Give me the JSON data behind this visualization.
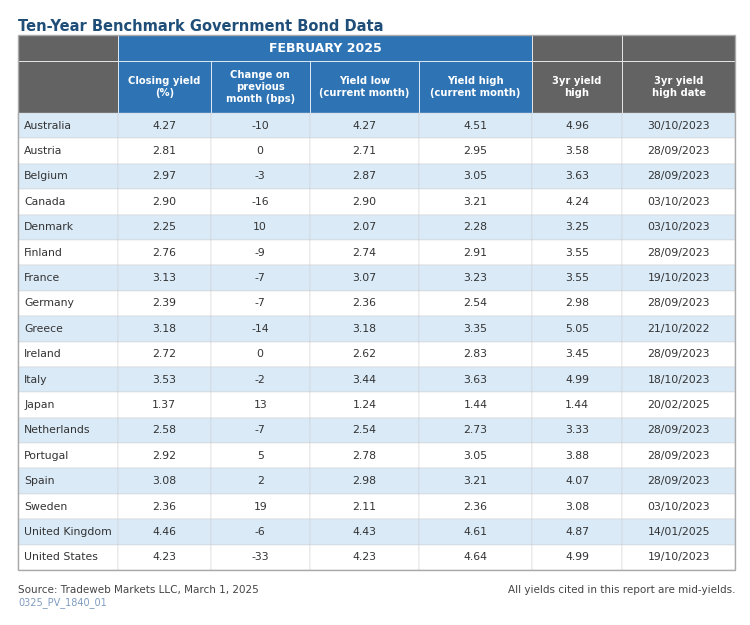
{
  "title": "Ten-Year Benchmark Government Bond Data",
  "feb_header": "FEBRUARY 2025",
  "col_headers": [
    "Closing yield\n(%)",
    "Change on\nprevious\nmonth (bps)",
    "Yield low\n(current month)",
    "Yield high\n(current month)",
    "3yr yield\nhigh",
    "3yr yield\nhigh date"
  ],
  "countries": [
    "Australia",
    "Austria",
    "Belgium",
    "Canada",
    "Denmark",
    "Finland",
    "France",
    "Germany",
    "Greece",
    "Ireland",
    "Italy",
    "Japan",
    "Netherlands",
    "Portugal",
    "Spain",
    "Sweden",
    "United Kingdom",
    "United States"
  ],
  "data": [
    [
      "4.27",
      "-10",
      "4.27",
      "4.51",
      "4.96",
      "30/10/2023"
    ],
    [
      "2.81",
      "0",
      "2.71",
      "2.95",
      "3.58",
      "28/09/2023"
    ],
    [
      "2.97",
      "-3",
      "2.87",
      "3.05",
      "3.63",
      "28/09/2023"
    ],
    [
      "2.90",
      "-16",
      "2.90",
      "3.21",
      "4.24",
      "03/10/2023"
    ],
    [
      "2.25",
      "10",
      "2.07",
      "2.28",
      "3.25",
      "03/10/2023"
    ],
    [
      "2.76",
      "-9",
      "2.74",
      "2.91",
      "3.55",
      "28/09/2023"
    ],
    [
      "3.13",
      "-7",
      "3.07",
      "3.23",
      "3.55",
      "19/10/2023"
    ],
    [
      "2.39",
      "-7",
      "2.36",
      "2.54",
      "2.98",
      "28/09/2023"
    ],
    [
      "3.18",
      "-14",
      "3.18",
      "3.35",
      "5.05",
      "21/10/2022"
    ],
    [
      "2.72",
      "0",
      "2.62",
      "2.83",
      "3.45",
      "28/09/2023"
    ],
    [
      "3.53",
      "-2",
      "3.44",
      "3.63",
      "4.99",
      "18/10/2023"
    ],
    [
      "1.37",
      "13",
      "1.24",
      "1.44",
      "1.44",
      "20/02/2025"
    ],
    [
      "2.58",
      "-7",
      "2.54",
      "2.73",
      "3.33",
      "28/09/2023"
    ],
    [
      "2.92",
      "5",
      "2.78",
      "3.05",
      "3.88",
      "28/09/2023"
    ],
    [
      "3.08",
      "2",
      "2.98",
      "3.21",
      "4.07",
      "28/09/2023"
    ],
    [
      "2.36",
      "19",
      "2.11",
      "2.36",
      "3.08",
      "03/10/2023"
    ],
    [
      "4.46",
      "-6",
      "4.43",
      "4.61",
      "4.87",
      "14/01/2025"
    ],
    [
      "4.23",
      "-33",
      "4.23",
      "4.64",
      "4.99",
      "19/10/2023"
    ]
  ],
  "source_text": "Source: Tradeweb Markets LLC, March 1, 2025",
  "right_note": "All yields cited in this report are mid-yields.",
  "code_text": "0325_PV_1840_01",
  "color_header_blue": "#2E74B5",
  "color_header_gray": "#636363",
  "color_row_light": "#DAEAF7",
  "color_row_white": "#FFFFFF",
  "color_title": "#1F4E79",
  "color_code": "#7F9CC0",
  "background": "#FFFFFF"
}
